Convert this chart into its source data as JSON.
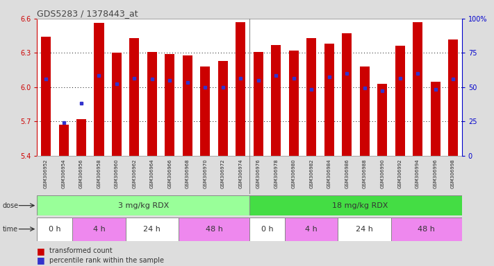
{
  "title": "GDS5283 / 1378443_at",
  "samples": [
    "GSM306952",
    "GSM306954",
    "GSM306956",
    "GSM306958",
    "GSM306960",
    "GSM306962",
    "GSM306964",
    "GSM306966",
    "GSM306968",
    "GSM306970",
    "GSM306972",
    "GSM306974",
    "GSM306976",
    "GSM306978",
    "GSM306980",
    "GSM306982",
    "GSM306984",
    "GSM306986",
    "GSM306988",
    "GSM306990",
    "GSM306992",
    "GSM306994",
    "GSM306996",
    "GSM306998"
  ],
  "bar_values": [
    6.44,
    5.67,
    5.72,
    6.56,
    6.3,
    6.43,
    6.31,
    6.29,
    6.28,
    6.18,
    6.23,
    6.57,
    6.31,
    6.37,
    6.32,
    6.43,
    6.38,
    6.47,
    6.18,
    6.03,
    6.36,
    6.57,
    6.05,
    6.42
  ],
  "percentile_values": [
    6.07,
    5.69,
    5.86,
    6.1,
    6.03,
    6.08,
    6.07,
    6.06,
    6.04,
    6.0,
    6.0,
    6.08,
    6.06,
    6.1,
    6.08,
    5.98,
    6.09,
    6.12,
    5.99,
    5.97,
    6.08,
    6.12,
    5.98,
    6.07
  ],
  "ylim": [
    5.4,
    6.6
  ],
  "yticks": [
    5.4,
    5.7,
    6.0,
    6.3,
    6.6
  ],
  "right_ytick_labels": [
    "0",
    "25",
    "50",
    "75",
    "100%"
  ],
  "right_ytick_vals": [
    0,
    25,
    50,
    75,
    100
  ],
  "bar_color": "#cc0000",
  "percentile_color": "#3333cc",
  "bg_color": "#ffffff",
  "axis_bg": "#e8e8e8",
  "dose_color_3": "#99ff99",
  "dose_color_18": "#44dd44",
  "time_colors": [
    "#ffffff",
    "#ee88ee",
    "#ffffff",
    "#ee88ee",
    "#ffffff",
    "#ee88ee",
    "#ffffff",
    "#ee88ee"
  ],
  "time_labels": [
    "0 h",
    "4 h",
    "24 h",
    "48 h",
    "0 h",
    "4 h",
    "24 h",
    "48 h"
  ],
  "time_sample_ranges": [
    [
      0,
      1
    ],
    [
      2,
      4
    ],
    [
      5,
      7
    ],
    [
      8,
      11
    ],
    [
      12,
      13
    ],
    [
      14,
      16
    ],
    [
      17,
      19
    ],
    [
      20,
      23
    ]
  ],
  "separator_idx": 11.5,
  "n_samples": 24,
  "group1_label": "3 mg/kg RDX",
  "group2_label": "18 mg/kg RDX"
}
